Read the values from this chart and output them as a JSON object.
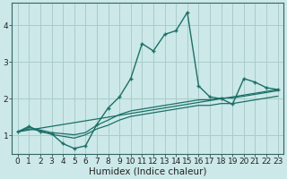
{
  "title": "",
  "xlabel": "Humidex (Indice chaleur)",
  "bg_color": "#cce8e8",
  "grid_color": "#aacccc",
  "line_color": "#1a7068",
  "spine_color": "#336666",
  "xlim": [
    -0.5,
    23.5
  ],
  "ylim": [
    0.5,
    4.6
  ],
  "line1_x": [
    0,
    1,
    2,
    3,
    4,
    5,
    6,
    7,
    8,
    9,
    10,
    11,
    12,
    13,
    14,
    15,
    16,
    17,
    18,
    19,
    20,
    21,
    22,
    23
  ],
  "line1_y": [
    1.1,
    1.25,
    1.1,
    1.05,
    0.78,
    0.65,
    0.72,
    1.3,
    1.75,
    2.05,
    2.55,
    3.5,
    3.3,
    3.75,
    3.85,
    4.35,
    2.35,
    2.05,
    2.0,
    1.85,
    2.55,
    2.45,
    2.3,
    2.25
  ],
  "line2_x": [
    0,
    1,
    2,
    3,
    4,
    5,
    6,
    7,
    8,
    9,
    10,
    11,
    12,
    13,
    14,
    15,
    16,
    17,
    18,
    19,
    20,
    21,
    22,
    23
  ],
  "line2_y": [
    1.1,
    1.22,
    1.15,
    1.08,
    1.05,
    1.02,
    1.08,
    1.28,
    1.42,
    1.57,
    1.67,
    1.72,
    1.77,
    1.82,
    1.87,
    1.92,
    1.97,
    1.97,
    2.02,
    2.02,
    2.07,
    2.12,
    2.17,
    2.22
  ],
  "line3_x": [
    0,
    1,
    2,
    3,
    4,
    5,
    6,
    7,
    8,
    9,
    10,
    11,
    12,
    13,
    14,
    15,
    16,
    17,
    18,
    19,
    20,
    21,
    22,
    23
  ],
  "line3_y": [
    1.1,
    1.18,
    1.13,
    1.03,
    0.98,
    0.93,
    1.02,
    1.18,
    1.28,
    1.42,
    1.52,
    1.57,
    1.62,
    1.67,
    1.72,
    1.77,
    1.82,
    1.82,
    1.87,
    1.87,
    1.92,
    1.97,
    2.02,
    2.07
  ],
  "line4_x": [
    0,
    23
  ],
  "line4_y": [
    1.1,
    2.25
  ],
  "yticks": [
    1,
    2,
    3,
    4
  ],
  "xticks": [
    0,
    1,
    2,
    3,
    4,
    5,
    6,
    7,
    8,
    9,
    10,
    11,
    12,
    13,
    14,
    15,
    16,
    17,
    18,
    19,
    20,
    21,
    22,
    23
  ],
  "tick_fontsize": 6.5,
  "xlabel_fontsize": 7.5
}
